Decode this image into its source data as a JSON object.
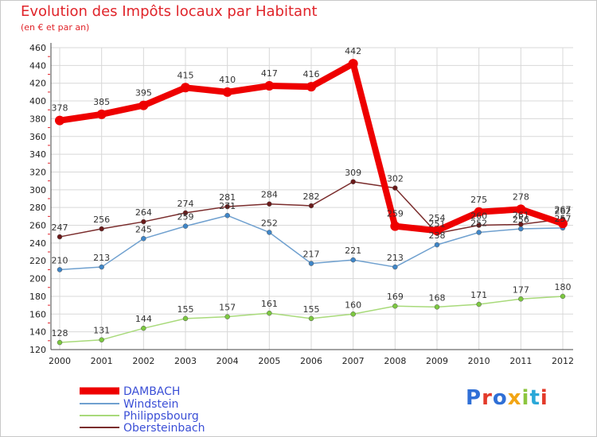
{
  "header": {
    "title": "Evolution des Impôts locaux par Habitant",
    "subtitle": "(en € et par an)"
  },
  "logo": {
    "text": "Proxiti",
    "colors": [
      "#2f6fd6",
      "#e33a2a",
      "#2f6fd6",
      "#f2a514",
      "#8cc63f",
      "#2aa8d8",
      "#e33a2a"
    ]
  },
  "colors": {
    "background": "#ffffff",
    "grid": "#d8d8d8",
    "title": "#e0242a",
    "legend_text": "#3b4fd6",
    "axis_tick_red": "#e0242a"
  },
  "chart_data": {
    "type": "line",
    "title": "Evolution des Impôts locaux par Habitant",
    "subtitle": "(en € et par an)",
    "xlabel": "",
    "ylabel": "",
    "x": [
      "2000",
      "2001",
      "2002",
      "2003",
      "2004",
      "2005",
      "2006",
      "2007",
      "2008",
      "2009",
      "2010",
      "2011",
      "2012"
    ],
    "ylim": [
      120,
      460
    ],
    "yticks": [
      120,
      140,
      160,
      180,
      200,
      220,
      240,
      260,
      280,
      300,
      320,
      340,
      360,
      380,
      400,
      420,
      440,
      460
    ],
    "grid": true,
    "legend_position": "bottom-left",
    "series": [
      {
        "name": "DAMBACH",
        "color": "#ee0000",
        "marker_color": "#ee0000",
        "width": "thick",
        "values": [
          378,
          385,
          395,
          415,
          410,
          417,
          416,
          442,
          259,
          254,
          275,
          278,
          262
        ],
        "labels": [
          "378",
          "385",
          "395",
          "415",
          "410",
          "417",
          "416",
          "442",
          "259",
          "254",
          "275",
          "278",
          "262"
        ]
      },
      {
        "name": "Windstein",
        "color": "#6fa0cf",
        "marker_color": "#3f86c8",
        "width": "thin",
        "values": [
          210,
          213,
          245,
          259,
          271,
          252,
          217,
          221,
          213,
          238,
          252,
          256,
          257
        ],
        "labels": [
          "210",
          "213",
          "245",
          "259",
          "271",
          "252",
          "217",
          "221",
          "213",
          "238",
          "252",
          "256",
          "257"
        ]
      },
      {
        "name": "Philippsbourg",
        "color": "#a8da7a",
        "marker_color": "#7cc840",
        "width": "thin",
        "values": [
          128,
          131,
          144,
          155,
          157,
          161,
          155,
          160,
          169,
          168,
          171,
          177,
          180
        ],
        "labels": [
          "128",
          "131",
          "144",
          "155",
          "157",
          "161",
          "155",
          "160",
          "169",
          "168",
          "171",
          "177",
          "180"
        ]
      },
      {
        "name": "Obersteinbach",
        "color": "#7a2c2c",
        "marker_color": "#6a1a1a",
        "width": "thin",
        "values": [
          247,
          256,
          264,
          274,
          281,
          284,
          282,
          309,
          302,
          251,
          260,
          261,
          267
        ],
        "labels": [
          "247",
          "256",
          "264",
          "274",
          "281",
          "284",
          "282",
          "309",
          "302",
          "251",
          "260",
          "261",
          "267"
        ]
      }
    ]
  }
}
